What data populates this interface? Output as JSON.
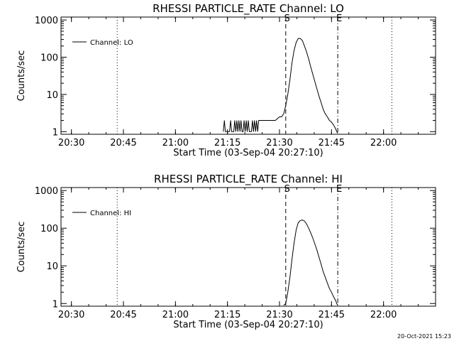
{
  "footer": {
    "timestamp": "20-Oct-2021 15:23"
  },
  "chart_data": [
    {
      "type": "line",
      "title": "RHESSI PARTICLE_RATE Channel: LO",
      "xlabel": "Start Time (03-Sep-04 20:27:10)",
      "ylabel": "Counts/sec",
      "x_unit": "minutes",
      "xlim": [
        20.45,
        22.25
      ],
      "x_ticks": [
        20.5,
        20.75,
        21.0,
        21.25,
        21.5,
        21.75,
        22.0
      ],
      "x_tick_labels": [
        "20:30",
        "20:45",
        "21:00",
        "21:15",
        "21:30",
        "21:45",
        "22:00"
      ],
      "yscale": "log",
      "ylim": [
        0.85,
        1200
      ],
      "y_ticks": [
        1,
        10,
        100,
        1000
      ],
      "y_tick_labels": [
        "1",
        "10",
        "100",
        "1000"
      ],
      "legend": {
        "label": "Channel: LO",
        "position": "top-left"
      },
      "markers": [
        {
          "x": 20.72,
          "style": "dotted",
          "label": ""
        },
        {
          "x": 21.53,
          "style": "dashed",
          "label": "S"
        },
        {
          "x": 21.78,
          "style": "dashdot",
          "label": "E"
        },
        {
          "x": 22.04,
          "style": "dotted",
          "label": ""
        }
      ],
      "series": [
        {
          "name": "Channel: LO",
          "x": [
            21.23,
            21.235,
            21.24,
            21.245,
            21.25,
            21.255,
            21.26,
            21.265,
            21.27,
            21.275,
            21.28,
            21.285,
            21.29,
            21.295,
            21.3,
            21.305,
            21.31,
            21.315,
            21.32,
            21.325,
            21.33,
            21.335,
            21.34,
            21.345,
            21.35,
            21.355,
            21.36,
            21.365,
            21.37,
            21.375,
            21.38,
            21.385,
            21.39,
            21.395,
            21.4,
            21.405,
            21.41,
            21.415,
            21.42,
            21.45,
            21.46,
            21.48,
            21.5,
            21.51,
            21.52,
            21.53,
            21.54,
            21.55,
            21.56,
            21.57,
            21.58,
            21.59,
            21.6,
            21.61,
            21.62,
            21.63,
            21.64,
            21.65,
            21.66,
            21.67,
            21.68,
            21.69,
            21.7,
            21.71,
            21.72,
            21.73,
            21.74,
            21.75,
            21.76,
            21.77,
            21.775,
            21.78
          ],
          "y": [
            1,
            2,
            1,
            1,
            1,
            1,
            1,
            2,
            1,
            1,
            1,
            2,
            1,
            2,
            1,
            2,
            1,
            2,
            1,
            1,
            2,
            1,
            2,
            1,
            2,
            1,
            1,
            1,
            2,
            1,
            2,
            1,
            2,
            1,
            2,
            2,
            2,
            2,
            2,
            2,
            2,
            2,
            2.5,
            2.5,
            3,
            5,
            10,
            25,
            70,
            150,
            250,
            320,
            320,
            280,
            200,
            140,
            90,
            55,
            35,
            22,
            14,
            9,
            6,
            4,
            3,
            2.5,
            2,
            1.8,
            1.5,
            1.2,
            1,
            0.9
          ]
        }
      ]
    },
    {
      "type": "line",
      "title": "RHESSI PARTICLE_RATE Channel: HI",
      "xlabel": "Start Time (03-Sep-04 20:27:10)",
      "ylabel": "Counts/sec",
      "x_unit": "minutes",
      "xlim": [
        20.45,
        22.25
      ],
      "x_ticks": [
        20.5,
        20.75,
        21.0,
        21.25,
        21.5,
        21.75,
        22.0
      ],
      "x_tick_labels": [
        "20:30",
        "20:45",
        "21:00",
        "21:15",
        "21:30",
        "21:45",
        "22:00"
      ],
      "yscale": "log",
      "ylim": [
        0.85,
        1200
      ],
      "y_ticks": [
        1,
        10,
        100,
        1000
      ],
      "y_tick_labels": [
        "1",
        "10",
        "100",
        "1000"
      ],
      "legend": {
        "label": "Channel: HI",
        "position": "top-left"
      },
      "markers": [
        {
          "x": 20.72,
          "style": "dotted",
          "label": ""
        },
        {
          "x": 21.53,
          "style": "dashed",
          "label": "S"
        },
        {
          "x": 21.78,
          "style": "dashdot",
          "label": "E"
        },
        {
          "x": 22.04,
          "style": "dotted",
          "label": ""
        }
      ],
      "series": [
        {
          "name": "Channel: HI",
          "x": [
            21.52,
            21.53,
            21.54,
            21.55,
            21.56,
            21.57,
            21.58,
            21.59,
            21.6,
            21.61,
            21.62,
            21.63,
            21.64,
            21.65,
            21.66,
            21.67,
            21.68,
            21.69,
            21.7,
            21.71,
            21.72,
            21.73,
            21.74,
            21.75,
            21.76,
            21.77,
            21.775,
            21.78
          ],
          "y": [
            0.9,
            1,
            2,
            5,
            15,
            40,
            90,
            140,
            160,
            165,
            155,
            130,
            100,
            75,
            55,
            38,
            26,
            17,
            11,
            7,
            5,
            3.5,
            2.5,
            2,
            1.5,
            1.2,
            1,
            0.9
          ]
        }
      ]
    }
  ]
}
